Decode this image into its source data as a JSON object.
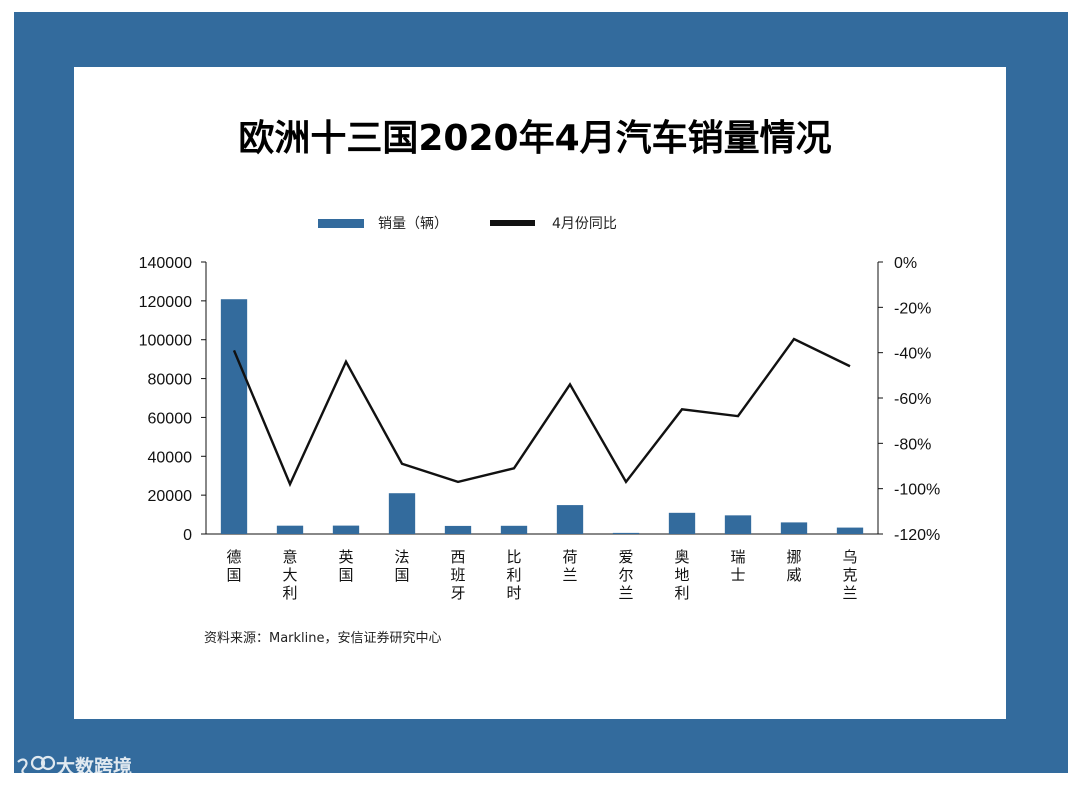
{
  "colors": {
    "background_frame": "#336b9d",
    "bar": "#336b9d",
    "line": "#111111"
  },
  "watermark": {
    "icon": "logo-icon",
    "text": "大数跨境"
  },
  "source_note": "资料来源：Markline，安信证券研究中心",
  "chart_data": {
    "type": "bar",
    "title": "欧洲十三国2020年4月汽车销量情况",
    "legend_placement": "top-center",
    "grid": false,
    "categories": [
      "德国",
      "意大利",
      "英国",
      "法国",
      "西班牙",
      "比利时",
      "荷兰",
      "爱尔兰",
      "奥地利",
      "瑞士",
      "挪威",
      "乌克兰"
    ],
    "left_axis": {
      "ylim": [
        0,
        140000
      ],
      "ticks": [
        "0",
        "20000",
        "40000",
        "60000",
        "80000",
        "100000",
        "120000",
        "140000"
      ],
      "tick_values": [
        0,
        20000,
        40000,
        60000,
        80000,
        100000,
        120000,
        140000
      ]
    },
    "right_axis": {
      "ylim": [
        -120,
        0
      ],
      "ticks": [
        "0%",
        "-20%",
        "-40%",
        "-60%",
        "-80%",
        "-100%",
        "-120%"
      ],
      "tick_values": [
        0,
        -20,
        -40,
        -60,
        -80,
        -100,
        -120
      ]
    },
    "series": [
      {
        "name": "销量（辆）",
        "type": "bar",
        "axis": "left",
        "values": [
          120840,
          4280,
          4320,
          20990,
          4160,
          4220,
          14880,
          570,
          10900,
          9600,
          5970,
          3300
        ]
      },
      {
        "name": "4月份同比",
        "type": "line",
        "axis": "right",
        "values": [
          -39,
          -98,
          -44,
          -89,
          -97,
          -91,
          -54,
          -97,
          -65,
          -68,
          -34,
          -46
        ]
      }
    ]
  }
}
